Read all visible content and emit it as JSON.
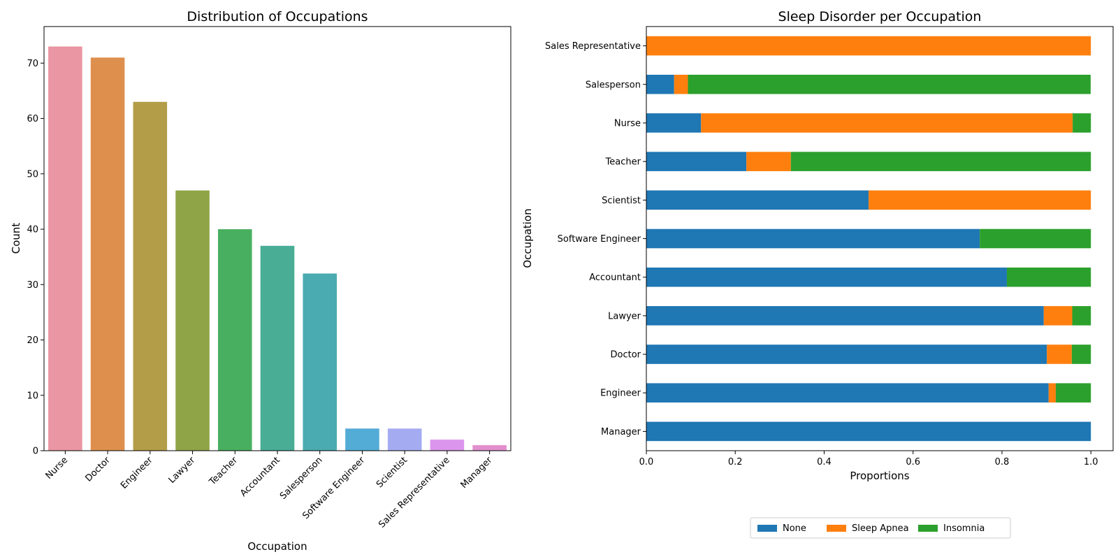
{
  "chart_data": [
    {
      "type": "bar",
      "title": "Distribution of Occupations",
      "xlabel": "Occupation",
      "ylabel": "Count",
      "ylim": [
        0,
        76.6
      ],
      "yticks": [
        0,
        10,
        20,
        30,
        40,
        50,
        60,
        70
      ],
      "categories": [
        "Nurse",
        "Doctor",
        "Engineer",
        "Lawyer",
        "Teacher",
        "Accountant",
        "Salesperson",
        "Software Engineer",
        "Scientist",
        "Sales Representative",
        "Manager"
      ],
      "values": [
        73,
        71,
        63,
        47,
        40,
        37,
        32,
        4,
        4,
        2,
        1
      ],
      "colors": [
        "#ea96a3",
        "#de8f4e",
        "#b39d49",
        "#8fa447",
        "#49af60",
        "#49ad96",
        "#4aabb0",
        "#53acd6",
        "#a5abf1",
        "#db95ec",
        "#e38fce"
      ],
      "xtick_rotation": 45,
      "grid": false
    },
    {
      "type": "bar",
      "orientation": "horizontal",
      "stacked": true,
      "title": "Sleep Disorder per Occupation",
      "xlabel": "Proportions",
      "ylabel": "Occupation",
      "xlim": [
        0,
        1.05
      ],
      "xticks": [
        "0.0",
        "0.2",
        "0.4",
        "0.6",
        "0.8",
        "1.0"
      ],
      "categories": [
        "Sales Representative",
        "Salesperson",
        "Nurse",
        "Teacher",
        "Scientist",
        "Software Engineer",
        "Accountant",
        "Lawyer",
        "Doctor",
        "Engineer",
        "Manager"
      ],
      "series": [
        {
          "name": "None",
          "color": "#1f77b4",
          "values": [
            0,
            0.0625,
            0.123,
            0.225,
            0.5,
            0.75,
            0.811,
            0.894,
            0.901,
            0.905,
            1.0
          ]
        },
        {
          "name": "Sleep Apnea",
          "color": "#ff7f0e",
          "values": [
            1.0,
            0.031,
            0.836,
            0.1,
            0.5,
            0,
            0,
            0.064,
            0.056,
            0.016,
            0
          ]
        },
        {
          "name": "Insomnia",
          "color": "#2ca02c",
          "values": [
            0,
            0.906,
            0.041,
            0.675,
            0,
            0.25,
            0.189,
            0.042,
            0.043,
            0.079,
            0
          ]
        }
      ],
      "legend": {
        "placement": "bottom-center",
        "entries": [
          "None",
          "Sleep Apnea",
          "Insomnia"
        ]
      },
      "grid": false
    }
  ]
}
